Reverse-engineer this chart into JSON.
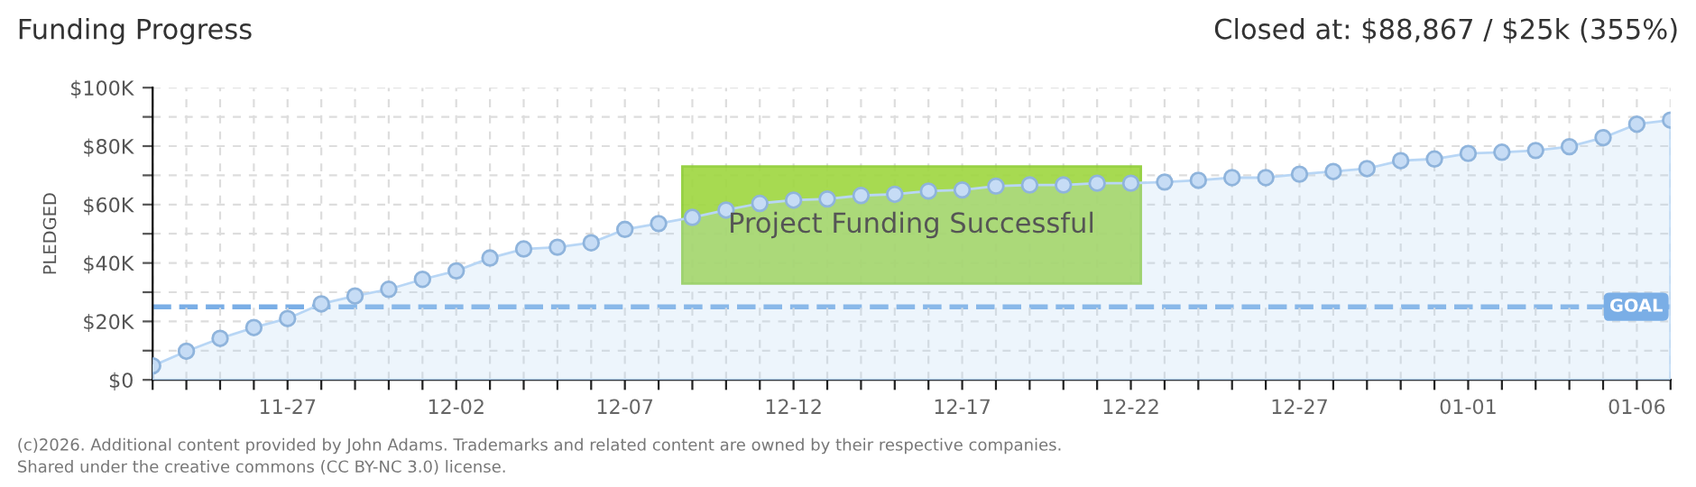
{
  "chart_data": {
    "type": "area",
    "title": "Funding Progress",
    "ylabel": "PLEDGED",
    "annotations": [
      "Closed at: $88,867 / $25k (355%)",
      "Project Funding Successful",
      "(c)2026. Additional content provided by John Adams. Trademarks and related content are owned by their respective companies.",
      "Shared under the creative commons (CC BY-NC 3.0) license."
    ],
    "x": [
      "2025-11-23",
      "2025-11-24",
      "2025-11-25",
      "2025-11-26",
      "2025-11-27",
      "2025-11-28",
      "2025-11-29",
      "2025-11-30",
      "2025-12-01",
      "2025-12-02",
      "2025-12-03",
      "2025-12-04",
      "2025-12-05",
      "2025-12-06",
      "2025-12-07",
      "2025-12-08",
      "2025-12-09",
      "2025-12-10",
      "2025-12-11",
      "2025-12-12",
      "2025-12-13",
      "2025-12-14",
      "2025-12-15",
      "2025-12-16",
      "2025-12-17",
      "2025-12-18",
      "2025-12-19",
      "2025-12-20",
      "2025-12-21",
      "2025-12-22",
      "2025-12-23",
      "2025-12-24",
      "2025-12-25",
      "2025-12-26",
      "2025-12-27",
      "2025-12-28",
      "2025-12-29",
      "2025-12-30",
      "2025-12-31",
      "2026-01-01",
      "2026-01-02",
      "2026-01-03",
      "2026-01-04",
      "2026-01-05",
      "2026-01-06",
      "2026-01-07"
    ],
    "series": [
      {
        "color": "#b8d6f5",
        "values": [
          4.8,
          9.8,
          14.2,
          17.9,
          21.0,
          26.0,
          28.7,
          31.0,
          34.4,
          37.3,
          41.7,
          44.8,
          45.4,
          46.9,
          51.5,
          53.5,
          55.6,
          58.1,
          60.4,
          61.5,
          61.9,
          63.1,
          63.5,
          64.6,
          65.0,
          66.3,
          66.7,
          66.7,
          67.3,
          67.3,
          67.7,
          68.3,
          69.2,
          69.2,
          70.4,
          71.3,
          72.3,
          75.0,
          75.6,
          77.5,
          77.9,
          78.5,
          79.8,
          82.9,
          87.5,
          88.9
        ]
      }
    ],
    "ylim": [
      0,
      100
    ],
    "yticks": [
      {
        "value": 0,
        "label": "$0"
      },
      {
        "value": 10,
        "label": null
      },
      {
        "value": 20,
        "label": "$20K"
      },
      {
        "value": 30,
        "label": null
      },
      {
        "value": 40,
        "label": "$40K"
      },
      {
        "value": 50,
        "label": null
      },
      {
        "value": 60,
        "label": "$60K"
      },
      {
        "value": 70,
        "label": null
      },
      {
        "value": 80,
        "label": "$80K"
      },
      {
        "value": 90,
        "label": null
      },
      {
        "value": 100,
        "label": "$100K"
      }
    ],
    "xlim": [
      "2025-11-23",
      "2026-01-07"
    ],
    "xticks": [
      {
        "value": "2025-11-23",
        "label": null
      },
      {
        "value": "2025-11-24",
        "label": null
      },
      {
        "value": "2025-11-25",
        "label": null
      },
      {
        "value": "2025-11-26",
        "label": null
      },
      {
        "value": "2025-11-27",
        "label": "11-27"
      },
      {
        "value": "2025-11-28",
        "label": null
      },
      {
        "value": "2025-11-29",
        "label": null
      },
      {
        "value": "2025-11-30",
        "label": null
      },
      {
        "value": "2025-12-01",
        "label": null
      },
      {
        "value": "2025-12-02",
        "label": "12-02"
      },
      {
        "value": "2025-12-03",
        "label": null
      },
      {
        "value": "2025-12-04",
        "label": null
      },
      {
        "value": "2025-12-05",
        "label": null
      },
      {
        "value": "2025-12-06",
        "label": null
      },
      {
        "value": "2025-12-07",
        "label": "12-07"
      },
      {
        "value": "2025-12-08",
        "label": null
      },
      {
        "value": "2025-12-09",
        "label": null
      },
      {
        "value": "2025-12-10",
        "label": null
      },
      {
        "value": "2025-12-11",
        "label": null
      },
      {
        "value": "2025-12-12",
        "label": "12-12"
      },
      {
        "value": "2025-12-13",
        "label": null
      },
      {
        "value": "2025-12-14",
        "label": null
      },
      {
        "value": "2025-12-15",
        "label": null
      },
      {
        "value": "2025-12-16",
        "label": null
      },
      {
        "value": "2025-12-17",
        "label": "12-17"
      },
      {
        "value": "2025-12-18",
        "label": null
      },
      {
        "value": "2025-12-19",
        "label": null
      },
      {
        "value": "2025-12-20",
        "label": null
      },
      {
        "value": "2025-12-21",
        "label": null
      },
      {
        "value": "2025-12-22",
        "label": "12-22"
      },
      {
        "value": "2025-12-23",
        "label": null
      },
      {
        "value": "2025-12-24",
        "label": null
      },
      {
        "value": "2025-12-25",
        "label": null
      },
      {
        "value": "2025-12-26",
        "label": null
      },
      {
        "value": "2025-12-27",
        "label": "12-27"
      },
      {
        "value": "2025-12-28",
        "label": null
      },
      {
        "value": "2025-12-29",
        "label": null
      },
      {
        "value": "2025-12-30",
        "label": null
      },
      {
        "value": "2025-12-31",
        "label": null
      },
      {
        "value": "2026-01-01",
        "label": "01-01"
      },
      {
        "value": "2026-01-02",
        "label": null
      },
      {
        "value": "2026-01-03",
        "label": null
      },
      {
        "value": "2026-01-04",
        "label": null
      },
      {
        "value": "2026-01-05",
        "label": null
      },
      {
        "value": "2026-01-06",
        "label": "01-06"
      },
      {
        "value": "2026-01-07",
        "label": null
      }
    ],
    "ref_lines": [
      {
        "axis": "y",
        "value": 25,
        "label": "GOAL",
        "color": "#7aaee6",
        "line_style": "dashed"
      }
    ],
    "grid": true,
    "marker": "circle",
    "line_style": "solid"
  }
}
